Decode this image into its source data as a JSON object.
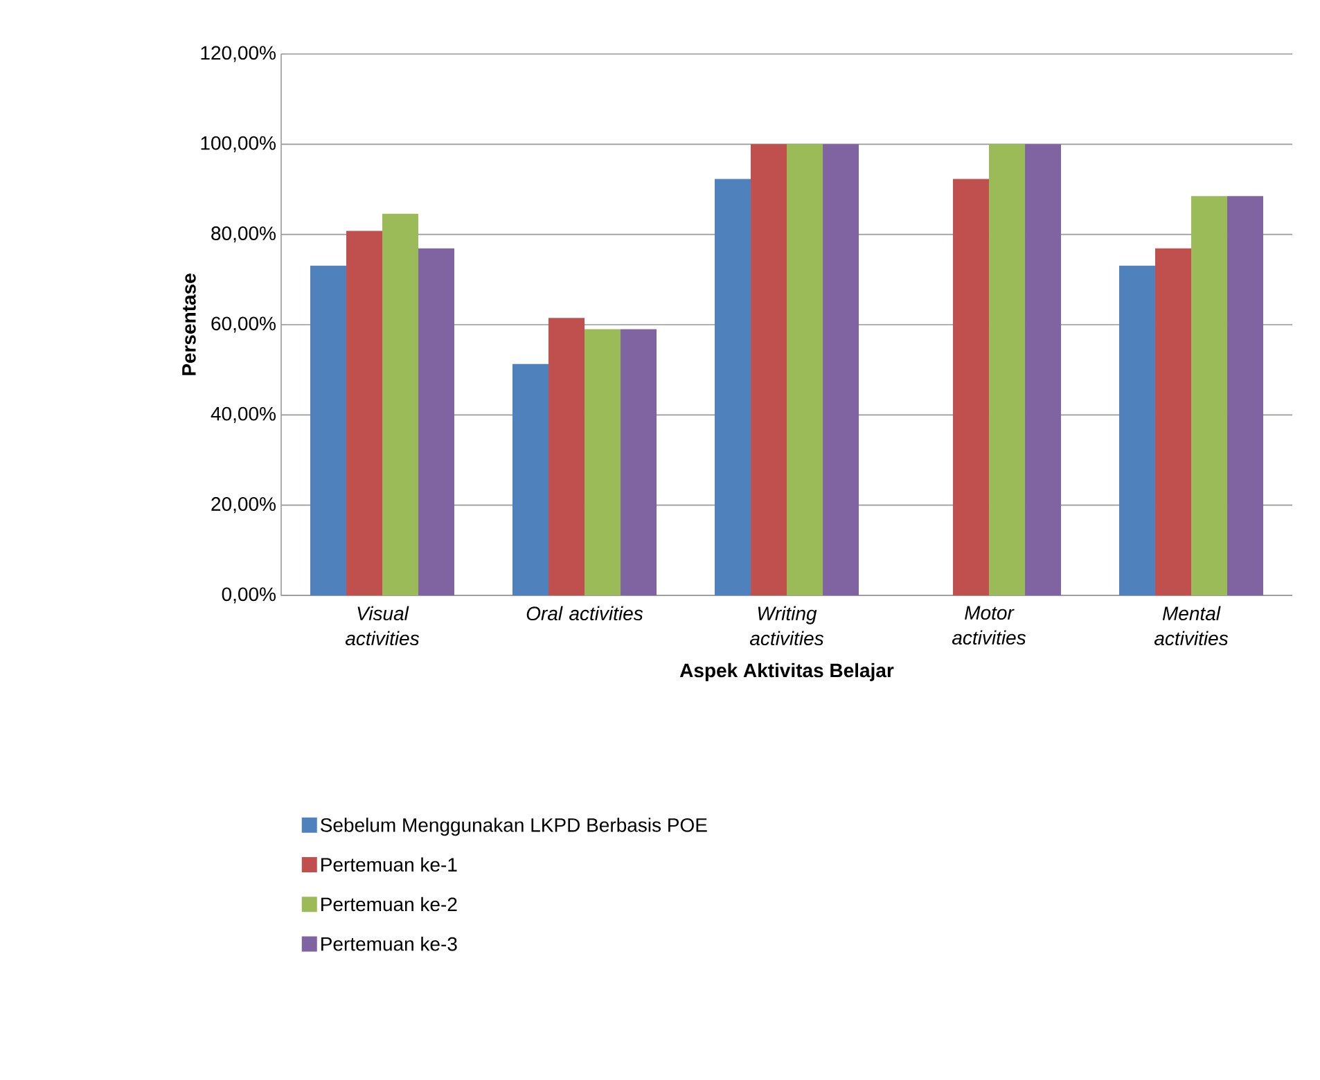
{
  "chart_data": {
    "type": "bar",
    "xlabel": "Aspek Aktivitas Belajar",
    "ylabel": "Persentase",
    "categories": [
      "*Visual activities*",
      "*Oral activities*",
      "*Writing activities*",
      "*Motor activities*",
      "*Mental activities*"
    ],
    "series": [
      {
        "name": "Sebelum Menggunakan LKPD Berbasis POE",
        "color": "#4f81bd",
        "values": [
          73.1,
          51.3,
          92.3,
          null,
          73.1
        ]
      },
      {
        "name": "Pertemuan ke-1",
        "color": "#c0504d",
        "values": [
          80.8,
          61.5,
          100,
          92.3,
          76.9
        ]
      },
      {
        "name": "Pertemuan ke-2",
        "color": "#9bbb59",
        "values": [
          84.6,
          59.0,
          100,
          100,
          88.5
        ]
      },
      {
        "name": "Pertemuan ke-3",
        "color": "#8064a2",
        "values": [
          76.9,
          59.0,
          100,
          100,
          88.5
        ]
      }
    ],
    "ylim": [
      0,
      120
    ],
    "yticks": [
      {
        "value": 0,
        "label": "0,00%"
      },
      {
        "value": 20,
        "label": "20,00%"
      },
      {
        "value": 40,
        "label": "40,00%"
      },
      {
        "value": 60,
        "label": "60,00%"
      },
      {
        "value": 80,
        "label": "80,00%"
      },
      {
        "value": 100,
        "label": "100,00%"
      },
      {
        "value": 120,
        "label": "120,00%"
      }
    ],
    "grid": "y",
    "legend": "bottom"
  }
}
